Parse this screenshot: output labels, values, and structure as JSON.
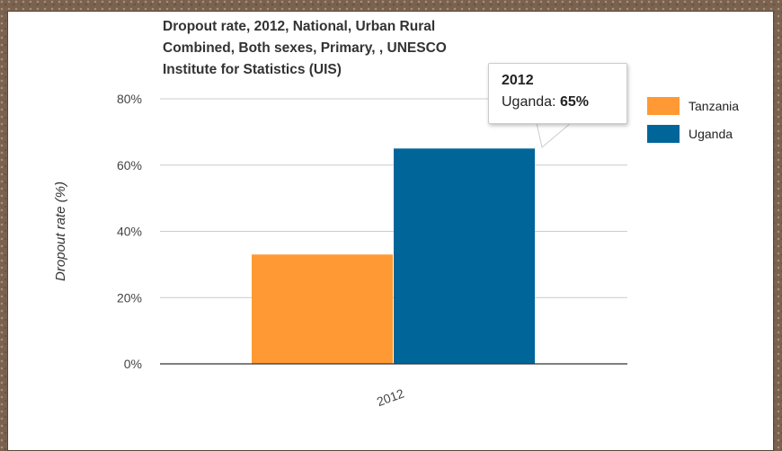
{
  "chart_data": {
    "type": "bar",
    "title": "Dropout rate, 2012, National, Urban Rural\nCombined, Both sexes, Primary, , UNESCO\nInstitute for Statistics (UIS)",
    "xlabel": "",
    "ylabel": "Dropout rate (%)",
    "categories": [
      "2012"
    ],
    "series": [
      {
        "name": "Tanzania",
        "color": "#ff9933",
        "values": [
          33
        ]
      },
      {
        "name": "Uganda",
        "color": "#006699",
        "values": [
          65
        ]
      }
    ],
    "ylim": [
      0,
      80
    ],
    "yticks": [
      "0%",
      "20%",
      "40%",
      "60%",
      "80%"
    ],
    "ytick_values": [
      0,
      20,
      40,
      60,
      80
    ],
    "grid": true,
    "legend_position": "right"
  },
  "tooltip": {
    "title": "2012",
    "series": "Uganda:",
    "value": "65%"
  }
}
